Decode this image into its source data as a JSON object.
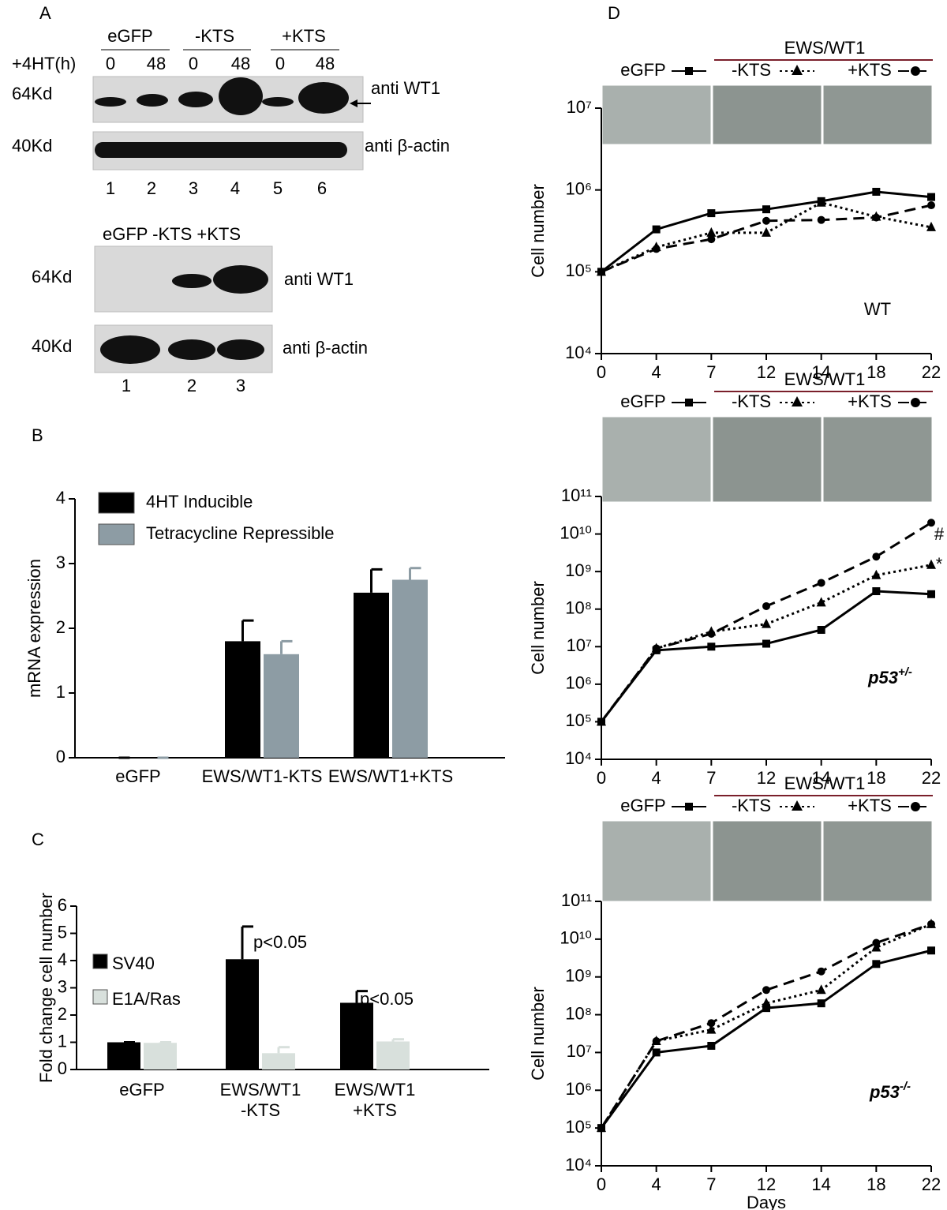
{
  "blot_a": {
    "panel": "A",
    "groups": [
      "eGFP",
      "-KTS",
      "+KTS"
    ],
    "time_label": "+4HT(h)",
    "times": [
      "0",
      "48",
      "0",
      "48",
      "0",
      "48"
    ],
    "markers": [
      "64Kd",
      "40Kd"
    ],
    "antibodies": [
      "anti WT1",
      "anti β-actin"
    ],
    "lanes": [
      "1",
      "2",
      "3",
      "4",
      "5",
      "6"
    ]
  },
  "blot_b": {
    "header": "eGFP -KTS +KTS",
    "markers": [
      "64Kd",
      "40Kd"
    ],
    "antibodies": [
      "anti WT1",
      "anti β-actin"
    ],
    "lanes": [
      "1",
      "2",
      "3"
    ]
  },
  "chart_data": [
    {
      "type": "bar",
      "panel": "B",
      "ylabel": "mRNA expression",
      "categories": [
        [
          "eGFP"
        ],
        [
          "EWS/WT1-KTS"
        ],
        [
          "EWS/WT1+KTS"
        ]
      ],
      "series": [
        {
          "name": "4HT Inducible",
          "color": "#000000",
          "values": [
            0,
            1.8,
            2.55
          ],
          "errors": [
            0,
            0.32,
            0.36
          ]
        },
        {
          "name": "Tetracycline Repressible",
          "color": "#8d9ca4",
          "values": [
            0,
            1.6,
            2.75
          ],
          "errors": [
            0,
            0.2,
            0.18
          ]
        }
      ],
      "ylim": [
        0,
        4
      ],
      "yticks": [
        0,
        1,
        2,
        3,
        4
      ]
    },
    {
      "type": "bar",
      "panel": "C",
      "ylabel": "Fold change cell number",
      "categories": [
        [
          "eGFP"
        ],
        [
          "EWS/WT1",
          "-KTS"
        ],
        [
          "EWS/WT1",
          "+KTS"
        ]
      ],
      "series": [
        {
          "name": "SV40",
          "color": "#000000",
          "values": [
            1,
            4.05,
            2.45
          ],
          "errors": [
            0,
            1.2,
            0.43
          ]
        },
        {
          "name": "E1A/Ras",
          "color": "#d8e0dc",
          "values": [
            0.98,
            0.6,
            1.03
          ],
          "errors": [
            0.02,
            0.22,
            0.08
          ]
        }
      ],
      "annotations": [
        "p<0.05",
        "p<0.05"
      ],
      "ylim": [
        0,
        6
      ],
      "yticks": [
        0,
        1,
        2,
        3,
        4,
        5,
        6
      ]
    },
    {
      "type": "line",
      "panel": "D",
      "log_scale": true,
      "group_label": "EWS/WT1",
      "ylabel": "Cell number",
      "categories": [
        "0",
        "4",
        "7",
        "12",
        "14",
        "18",
        "22"
      ],
      "series": [
        {
          "name": "eGFP",
          "color": "#000000",
          "dash": "solid",
          "marker": "square",
          "values": [
            100000,
            330000,
            520000,
            580000,
            730000,
            950000,
            820000
          ]
        },
        {
          "name": "-KTS",
          "color": "#000000",
          "dash": "dotted",
          "marker": "triangle",
          "values": [
            100000,
            200000,
            300000,
            300000,
            700000,
            470000,
            350000
          ]
        },
        {
          "name": "+KTS",
          "color": "#000000",
          "dash": "dashed",
          "marker": "circle",
          "values": [
            100000,
            190000,
            250000,
            420000,
            430000,
            460000,
            650000
          ]
        }
      ],
      "annotations": [
        "WT"
      ],
      "ylim": [
        10000,
        10000000
      ],
      "yticks": [
        {
          "value": 10000,
          "label": "10⁴"
        },
        {
          "value": 100000,
          "label": "10⁵"
        },
        {
          "value": 1000000,
          "label": "10⁶"
        },
        {
          "value": 10000000,
          "label": "10⁷"
        }
      ]
    },
    {
      "type": "line",
      "log_scale": true,
      "group_label": "EWS/WT1",
      "ylabel": "Cell number",
      "categories": [
        "0",
        "4",
        "7",
        "12",
        "14",
        "18",
        "22"
      ],
      "series": [
        {
          "name": "eGFP",
          "color": "#000000",
          "dash": "solid",
          "marker": "square",
          "values": [
            100000,
            8000000,
            10000000,
            12000000,
            28000000,
            300000000,
            250000000
          ]
        },
        {
          "name": "-KTS",
          "color": "#000000",
          "dash": "dotted",
          "marker": "triangle",
          "values": [
            100000,
            9000000,
            25000000,
            40000000,
            150000000,
            800000000,
            1500000000
          ]
        },
        {
          "name": "+KTS",
          "color": "#000000",
          "dash": "dashed",
          "marker": "circle",
          "values": [
            100000,
            9000000,
            22000000,
            120000000,
            500000000,
            2500000000,
            20000000000
          ]
        }
      ],
      "annotations": [
        {
          "text": "p53",
          "sup": "+/-"
        },
        "#",
        "*"
      ],
      "ylim": [
        10000,
        100000000000
      ],
      "yticks": [
        {
          "value": 10000,
          "label": "10⁴"
        },
        {
          "value": 100000,
          "label": "10⁵"
        },
        {
          "value": 1000000,
          "label": "10⁶"
        },
        {
          "value": 10000000,
          "label": "10⁷"
        },
        {
          "value": 100000000,
          "label": "10⁸"
        },
        {
          "value": 1000000000,
          "label": "10⁹"
        },
        {
          "value": 10000000000,
          "label": "10¹⁰"
        },
        {
          "value": 100000000000,
          "label": "10¹¹"
        }
      ]
    },
    {
      "type": "line",
      "log_scale": true,
      "group_label": "EWS/WT1",
      "ylabel": "Cell number",
      "xlabel": "Days",
      "categories": [
        "0",
        "4",
        "7",
        "12",
        "14",
        "18",
        "22"
      ],
      "series": [
        {
          "name": "eGFP",
          "color": "#000000",
          "dash": "solid",
          "marker": "square",
          "values": [
            100000,
            10000000,
            15000000,
            150000000,
            200000000,
            2200000000,
            5000000000
          ]
        },
        {
          "name": "-KTS",
          "color": "#000000",
          "dash": "dotted",
          "marker": "triangle",
          "values": [
            100000,
            20000000,
            40000000,
            200000000,
            450000000,
            6000000000,
            25000000000
          ]
        },
        {
          "name": "+KTS",
          "color": "#000000",
          "dash": "dashed",
          "marker": "circle",
          "values": [
            100000,
            20000000,
            60000000,
            450000000,
            1400000000,
            8000000000,
            25000000000
          ]
        }
      ],
      "annotations": [
        {
          "text": "p53",
          "sup": "-/-"
        }
      ],
      "ylim": [
        10000,
        100000000000
      ],
      "yticks": [
        {
          "value": 10000,
          "label": "10⁴"
        },
        {
          "value": 100000,
          "label": "10⁵"
        },
        {
          "value": 1000000,
          "label": "10⁶"
        },
        {
          "value": 10000000,
          "label": "10⁷"
        },
        {
          "value": 100000000,
          "label": "10⁸"
        },
        {
          "value": 1000000000,
          "label": "10⁹"
        },
        {
          "value": 10000000000,
          "label": "10¹⁰"
        },
        {
          "value": 100000000000,
          "label": "10¹¹"
        }
      ]
    }
  ]
}
